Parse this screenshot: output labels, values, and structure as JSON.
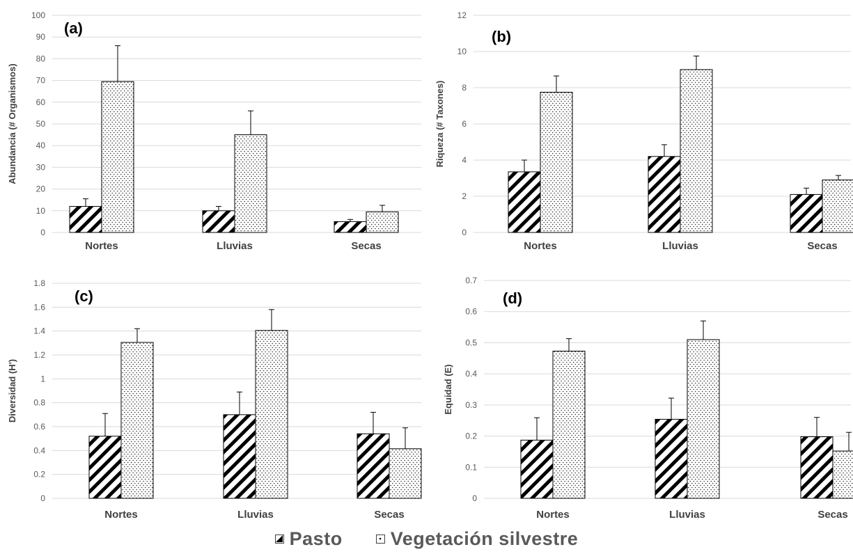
{
  "legend": {
    "items": [
      {
        "label": "Pasto",
        "pattern": "hatch"
      },
      {
        "label": "Vegetación silvestre",
        "pattern": "dots"
      }
    ]
  },
  "chart_data": [
    {
      "type": "bar",
      "panel_label": "(a)",
      "ylabel": "Abundancia (# Organismos)",
      "categories": [
        "Nortes",
        "Lluvias",
        "Secas"
      ],
      "ylim": [
        0,
        100
      ],
      "yticks": [
        "0",
        "10",
        "20",
        "30",
        "40",
        "50",
        "60",
        "70",
        "80",
        "90",
        "100"
      ],
      "grid": true,
      "series": [
        {
          "name": "Pasto",
          "values": [
            12,
            10,
            5
          ],
          "errors": [
            3.5,
            2,
            1
          ]
        },
        {
          "name": "Vegetación silvestre",
          "values": [
            69.5,
            45,
            9.5
          ],
          "errors": [
            16.5,
            11,
            3
          ]
        }
      ]
    },
    {
      "type": "bar",
      "panel_label": "(b)",
      "ylabel": "Riqueza (# Taxones)",
      "categories": [
        "Nortes",
        "Lluvias",
        "Secas"
      ],
      "ylim": [
        0,
        12
      ],
      "yticks": [
        "0",
        "2",
        "4",
        "6",
        "8",
        "10",
        "12"
      ],
      "grid": true,
      "series": [
        {
          "name": "Pasto",
          "values": [
            3.35,
            4.2,
            2.1
          ],
          "errors": [
            0.65,
            0.65,
            0.35
          ]
        },
        {
          "name": "Vegetación silvestre",
          "values": [
            7.75,
            9.0,
            2.9
          ],
          "errors": [
            0.9,
            0.75,
            0.25
          ]
        }
      ]
    },
    {
      "type": "bar",
      "panel_label": "(c)",
      "ylabel": "Diversidad (H')",
      "categories": [
        "Nortes",
        "Lluvias",
        "Secas"
      ],
      "ylim": [
        0,
        1.8
      ],
      "yticks": [
        "0",
        "0.2",
        "0.4",
        "0.6",
        "0.8",
        "1",
        "1.2",
        "1.4",
        "1.6",
        "1.8"
      ],
      "grid": true,
      "series": [
        {
          "name": "Pasto",
          "values": [
            0.52,
            0.7,
            0.54
          ],
          "errors": [
            0.19,
            0.19,
            0.18
          ]
        },
        {
          "name": "Vegetación silvestre",
          "values": [
            1.305,
            1.405,
            0.415
          ],
          "errors": [
            0.115,
            0.175,
            0.175
          ]
        }
      ]
    },
    {
      "type": "bar",
      "panel_label": "(d)",
      "ylabel": "Equidad (E)",
      "categories": [
        "Nortes",
        "Lluvias",
        "Secas"
      ],
      "ylim": [
        0,
        0.7
      ],
      "yticks": [
        "0",
        "0.1",
        "0.2",
        "0.3",
        "0.4",
        "0.5",
        "0.6",
        "0.7"
      ],
      "grid": true,
      "series": [
        {
          "name": "Pasto",
          "values": [
            0.187,
            0.254,
            0.198
          ],
          "errors": [
            0.072,
            0.068,
            0.062
          ]
        },
        {
          "name": "Vegetación silvestre",
          "values": [
            0.473,
            0.51,
            0.152
          ],
          "errors": [
            0.04,
            0.06,
            0.06
          ]
        }
      ]
    }
  ]
}
